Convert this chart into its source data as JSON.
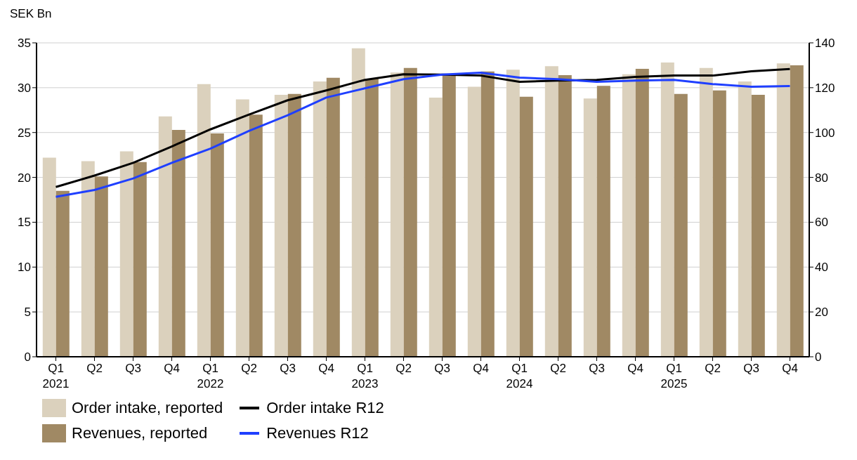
{
  "chart_data": {
    "type": "bar",
    "ylabel": "SEK Bn",
    "categories": [
      "Q1\n2021",
      "Q2",
      "Q3",
      "Q4",
      "Q1\n2022",
      "Q2",
      "Q3",
      "Q4",
      "Q1\n2023",
      "Q2",
      "Q3",
      "Q4",
      "Q1\n2024",
      "Q2",
      "Q3",
      "Q4",
      "Q1\n2025",
      "Q2",
      "Q3",
      "Q4"
    ],
    "series": [
      {
        "name": "Order intake, reported",
        "color": "#dbd1bd",
        "values": [
          22.2,
          21.8,
          22.9,
          26.8,
          30.4,
          28.7,
          29.2,
          30.7,
          34.4,
          31.7,
          28.9,
          30.1,
          32.0,
          32.4,
          28.8,
          31.5,
          32.8,
          32.2,
          30.7,
          32.7
        ]
      },
      {
        "name": "Revenues, reported",
        "color": "#a08964",
        "values": [
          18.5,
          20.1,
          21.7,
          25.3,
          24.9,
          27.0,
          29.3,
          31.1,
          31.0,
          32.2,
          31.5,
          31.8,
          29.0,
          31.4,
          30.2,
          32.1,
          29.3,
          29.7,
          29.2,
          32.5
        ]
      },
      {
        "name": "Order intake R12",
        "type": "line",
        "axis": "y2",
        "color": "#000000",
        "values": [
          75.7,
          80.8,
          86.5,
          93.8,
          101.4,
          108.0,
          114.4,
          118.8,
          123.5,
          126.0,
          125.8,
          125.4,
          122.6,
          123.2,
          123.5,
          124.8,
          125.4,
          125.4,
          127.3,
          128.3
        ]
      },
      {
        "name": "Revenues R12",
        "type": "line",
        "axis": "y2",
        "color": "#1f3fff",
        "values": [
          71.3,
          74.4,
          79.5,
          86.5,
          92.8,
          100.7,
          107.7,
          115.6,
          119.7,
          123.8,
          125.8,
          126.7,
          124.5,
          123.8,
          122.6,
          123.2,
          123.5,
          121.6,
          120.4,
          120.7
        ]
      }
    ],
    "ylim": [
      0,
      35
    ],
    "yticks": [
      0,
      5,
      10,
      15,
      20,
      25,
      30,
      35
    ],
    "y2lim": [
      0,
      140
    ],
    "y2ticks": [
      0,
      20,
      40,
      60,
      80,
      100,
      120,
      140
    ],
    "grid": "y",
    "legend": "bottom",
    "marker": "none",
    "line_style": "solid"
  }
}
